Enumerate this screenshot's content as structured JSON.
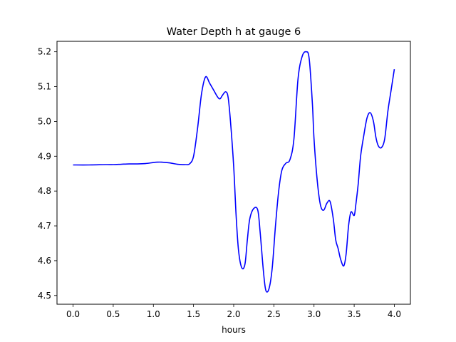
{
  "chart_data": {
    "type": "line",
    "title": "Water Depth h at gauge 6",
    "xlabel": "hours",
    "ylabel": "",
    "xlim": [
      -0.2,
      4.2
    ],
    "ylim": [
      4.475,
      5.23
    ],
    "xticks": [
      0.0,
      0.5,
      1.0,
      1.5,
      2.0,
      2.5,
      3.0,
      3.5,
      4.0
    ],
    "xtick_labels": [
      "0.0",
      "0.5",
      "1.0",
      "1.5",
      "2.0",
      "2.5",
      "3.0",
      "3.5",
      "4.0"
    ],
    "yticks": [
      4.5,
      4.6,
      4.7,
      4.8,
      4.9,
      5.0,
      5.1,
      5.2
    ],
    "ytick_labels": [
      "4.5",
      "4.6",
      "4.7",
      "4.8",
      "4.9",
      "5.0",
      "5.1",
      "5.2"
    ],
    "grid": false,
    "legend": "none",
    "series": [
      {
        "color": "#0000ff",
        "x": [
          0.0,
          0.2,
          0.4,
          0.5,
          0.6,
          0.7,
          0.8,
          0.9,
          1.0,
          1.05,
          1.1,
          1.2,
          1.3,
          1.4,
          1.45,
          1.5,
          1.55,
          1.6,
          1.65,
          1.7,
          1.75,
          1.8,
          1.83,
          1.86,
          1.9,
          1.93,
          1.96,
          2.0,
          2.03,
          2.06,
          2.1,
          2.14,
          2.17,
          2.2,
          2.25,
          2.3,
          2.33,
          2.37,
          2.4,
          2.44,
          2.48,
          2.52,
          2.56,
          2.6,
          2.65,
          2.7,
          2.75,
          2.8,
          2.85,
          2.9,
          2.94,
          2.98,
          3.0,
          3.04,
          3.08,
          3.12,
          3.16,
          3.2,
          3.24,
          3.27,
          3.3,
          3.33,
          3.37,
          3.4,
          3.43,
          3.46,
          3.5,
          3.52,
          3.55,
          3.58,
          3.62,
          3.66,
          3.7,
          3.74,
          3.77,
          3.8,
          3.84,
          3.88,
          3.92,
          3.96,
          4.0
        ],
        "y": [
          4.875,
          4.875,
          4.876,
          4.876,
          4.877,
          4.878,
          4.878,
          4.879,
          4.882,
          4.883,
          4.883,
          4.881,
          4.877,
          4.876,
          4.878,
          4.9,
          4.98,
          5.08,
          5.128,
          5.11,
          5.09,
          5.07,
          5.065,
          5.075,
          5.085,
          5.07,
          5.0,
          4.87,
          4.73,
          4.63,
          4.58,
          4.59,
          4.66,
          4.72,
          4.75,
          4.745,
          4.68,
          4.57,
          4.515,
          4.52,
          4.58,
          4.7,
          4.8,
          4.86,
          4.88,
          4.89,
          4.95,
          5.12,
          5.185,
          5.2,
          5.18,
          5.05,
          4.95,
          4.83,
          4.76,
          4.745,
          4.765,
          4.77,
          4.72,
          4.66,
          4.635,
          4.605,
          4.585,
          4.62,
          4.7,
          4.74,
          4.73,
          4.76,
          4.82,
          4.9,
          4.96,
          5.01,
          5.025,
          5.0,
          4.955,
          4.93,
          4.925,
          4.95,
          5.03,
          5.09,
          5.15
        ]
      }
    ]
  }
}
